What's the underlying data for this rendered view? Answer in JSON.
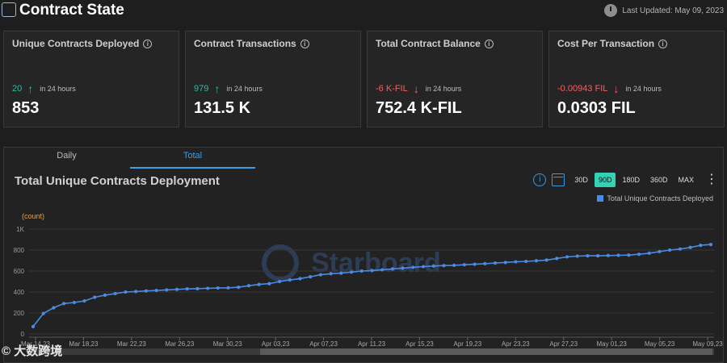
{
  "header": {
    "title": "Contract State",
    "last_updated": "Last Updated: May 09, 2023"
  },
  "cards": [
    {
      "title": "Unique Contracts Deployed",
      "change": "20",
      "direction": "up",
      "period": "in 24 hours",
      "value": "853"
    },
    {
      "title": "Contract Transactions",
      "change": "979",
      "direction": "up",
      "period": "in 24 hours",
      "value": "131.5 K"
    },
    {
      "title": "Total Contract Balance",
      "change": "-6 K-FIL",
      "direction": "down",
      "period": "in 24 hours",
      "value": "752.4 K-FIL"
    },
    {
      "title": "Cost Per Transaction",
      "change": "-0.00943 FIL",
      "direction": "down",
      "period": "in 24 hours",
      "value": "0.0303 FIL"
    }
  ],
  "tabs": [
    "Daily",
    "Total"
  ],
  "active_tab": "Total",
  "ranges": [
    "30D",
    "90D",
    "180D",
    "360D",
    "MAX"
  ],
  "active_range": "90D",
  "watermark_text": "Starboard",
  "corner_text": "大数跨境",
  "colors": {
    "accent": "#3aa0e8",
    "series": "#4a8be6",
    "up": "#23c0a0",
    "down": "#ff5c5c",
    "selected_range": "#34d1b4"
  },
  "chart_data": {
    "type": "line",
    "title": "Total Unique Contracts Deployment",
    "ylabel": "(count)",
    "xlabel": "",
    "ylim": [
      0,
      1000
    ],
    "yticks": [
      0,
      200,
      400,
      600,
      800,
      1000
    ],
    "ytick_labels": [
      "0",
      "200",
      "400",
      "600",
      "800",
      "1K"
    ],
    "legend": "top-right",
    "series": [
      {
        "name": "Total Unique Contracts Deployed",
        "values": [
          70,
          195,
          250,
          290,
          300,
          315,
          350,
          370,
          385,
          400,
          405,
          410,
          415,
          420,
          425,
          430,
          432,
          435,
          438,
          440,
          445,
          460,
          472,
          480,
          500,
          515,
          528,
          545,
          565,
          575,
          580,
          590,
          600,
          605,
          612,
          620,
          628,
          635,
          642,
          648,
          652,
          655,
          660,
          665,
          670,
          676,
          682,
          688,
          692,
          698,
          705,
          720,
          735,
          742,
          745,
          745,
          748,
          750,
          752,
          760,
          770,
          785,
          800,
          810,
          825,
          845,
          853
        ]
      }
    ],
    "x_tick_labels": [
      "Mar 14,23",
      "Mar 18,23",
      "Mar 22,23",
      "Mar 26,23",
      "Mar 30,23",
      "Apr 03,23",
      "Apr 07,23",
      "Apr 11,23",
      "Apr 15,23",
      "Apr 19,23",
      "Apr 23,23",
      "Apr 27,23",
      "May 01,23",
      "May 05,23",
      "May 09,23"
    ]
  }
}
